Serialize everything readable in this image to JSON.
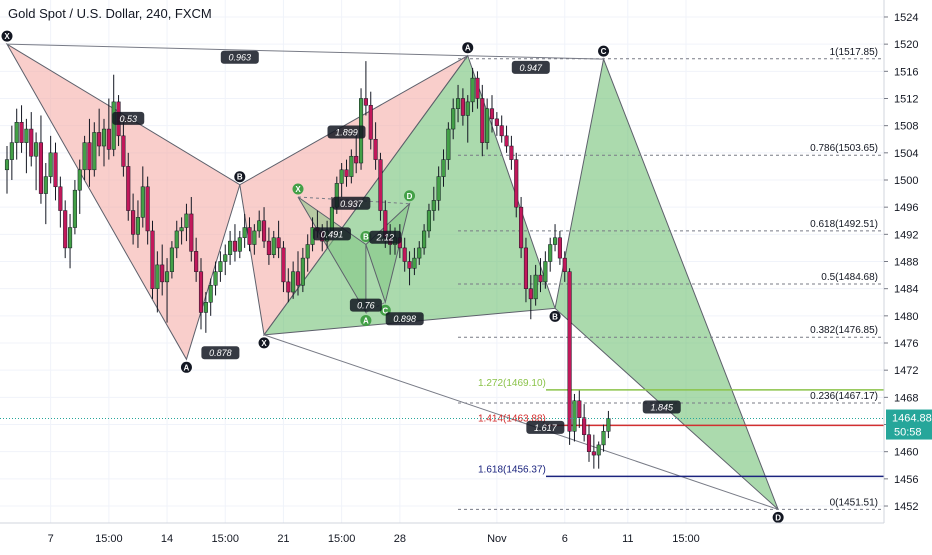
{
  "chart_data": {
    "type": "candlestick",
    "title": "Gold Spot / U.S. Dollar, 240, FXCM",
    "ylim": [
      1449.5,
      1526.5
    ],
    "y_ticks": [
      1452,
      1456,
      1460,
      1464,
      1468,
      1472,
      1476,
      1480,
      1484,
      1488,
      1492,
      1496,
      1500,
      1504,
      1508,
      1512,
      1516,
      1520,
      1524
    ],
    "x_ticks": [
      {
        "label": "7",
        "bar": 9
      },
      {
        "label": "15:00",
        "bar": 21
      },
      {
        "label": "14",
        "bar": 33
      },
      {
        "label": "15:00",
        "bar": 45
      },
      {
        "label": "21",
        "bar": 57
      },
      {
        "label": "15:00",
        "bar": 69
      },
      {
        "label": "28",
        "bar": 81
      },
      {
        "label": "Nov",
        "bar": 101
      },
      {
        "label": "6",
        "bar": 115
      },
      {
        "label": "11",
        "bar": 128
      },
      {
        "label": "15:00",
        "bar": 140
      }
    ],
    "last_price": "1464.88",
    "countdown": "50:58",
    "candles": [
      {
        "o": 1501.5,
        "h": 1505.0,
        "l": 1498.0,
        "c": 1503.0
      },
      {
        "o": 1503.0,
        "h": 1508.0,
        "l": 1500.0,
        "c": 1505.5
      },
      {
        "o": 1505.5,
        "h": 1510.5,
        "l": 1503.0,
        "c": 1508.5
      },
      {
        "o": 1508.5,
        "h": 1511.0,
        "l": 1504.0,
        "c": 1505.5
      },
      {
        "o": 1505.5,
        "h": 1509.0,
        "l": 1501.0,
        "c": 1507.5
      },
      {
        "o": 1507.5,
        "h": 1510.0,
        "l": 1502.0,
        "c": 1503.5
      },
      {
        "o": 1503.5,
        "h": 1507.0,
        "l": 1498.5,
        "c": 1505.5
      },
      {
        "o": 1505.5,
        "h": 1509.5,
        "l": 1496.5,
        "c": 1498.0
      },
      {
        "o": 1498.0,
        "h": 1502.5,
        "l": 1493.5,
        "c": 1500.5
      },
      {
        "o": 1500.5,
        "h": 1506.5,
        "l": 1499.5,
        "c": 1504.0
      },
      {
        "o": 1504.0,
        "h": 1505.5,
        "l": 1497.0,
        "c": 1499.0
      },
      {
        "o": 1499.0,
        "h": 1500.5,
        "l": 1493.0,
        "c": 1495.5
      },
      {
        "o": 1495.5,
        "h": 1497.0,
        "l": 1488.5,
        "c": 1490.0
      },
      {
        "o": 1490.0,
        "h": 1495.0,
        "l": 1487.0,
        "c": 1493.0
      },
      {
        "o": 1493.0,
        "h": 1500.0,
        "l": 1492.0,
        "c": 1498.5
      },
      {
        "o": 1498.5,
        "h": 1503.0,
        "l": 1495.0,
        "c": 1501.5
      },
      {
        "o": 1501.5,
        "h": 1506.5,
        "l": 1500.0,
        "c": 1505.5
      },
      {
        "o": 1505.5,
        "h": 1509.0,
        "l": 1499.0,
        "c": 1501.5
      },
      {
        "o": 1501.5,
        "h": 1508.5,
        "l": 1500.5,
        "c": 1507.0
      },
      {
        "o": 1507.0,
        "h": 1510.5,
        "l": 1503.5,
        "c": 1505.0
      },
      {
        "o": 1505.0,
        "h": 1509.0,
        "l": 1502.0,
        "c": 1507.5
      },
      {
        "o": 1507.5,
        "h": 1512.0,
        "l": 1503.0,
        "c": 1504.5
      },
      {
        "o": 1504.5,
        "h": 1515.5,
        "l": 1503.5,
        "c": 1511.5
      },
      {
        "o": 1511.5,
        "h": 1512.5,
        "l": 1505.0,
        "c": 1506.5
      },
      {
        "o": 1506.5,
        "h": 1508.5,
        "l": 1500.5,
        "c": 1502.0
      },
      {
        "o": 1502.0,
        "h": 1504.0,
        "l": 1494.0,
        "c": 1495.5
      },
      {
        "o": 1495.5,
        "h": 1498.0,
        "l": 1490.5,
        "c": 1492.0
      },
      {
        "o": 1492.0,
        "h": 1497.0,
        "l": 1490.0,
        "c": 1494.5
      },
      {
        "o": 1494.5,
        "h": 1502.0,
        "l": 1493.0,
        "c": 1499.0
      },
      {
        "o": 1499.0,
        "h": 1500.5,
        "l": 1490.5,
        "c": 1492.5
      },
      {
        "o": 1492.5,
        "h": 1494.0,
        "l": 1482.5,
        "c": 1484.0
      },
      {
        "o": 1484.0,
        "h": 1489.5,
        "l": 1480.5,
        "c": 1487.5
      },
      {
        "o": 1487.5,
        "h": 1490.5,
        "l": 1483.0,
        "c": 1485.0
      },
      {
        "o": 1485.0,
        "h": 1488.5,
        "l": 1479.0,
        "c": 1486.5
      },
      {
        "o": 1486.5,
        "h": 1491.0,
        "l": 1485.5,
        "c": 1490.0
      },
      {
        "o": 1490.0,
        "h": 1494.0,
        "l": 1488.5,
        "c": 1492.5
      },
      {
        "o": 1492.5,
        "h": 1494.5,
        "l": 1490.5,
        "c": 1493.0
      },
      {
        "o": 1493.0,
        "h": 1496.5,
        "l": 1491.0,
        "c": 1495.0
      },
      {
        "o": 1495.0,
        "h": 1497.5,
        "l": 1488.0,
        "c": 1489.5
      },
      {
        "o": 1489.5,
        "h": 1491.5,
        "l": 1485.0,
        "c": 1486.5
      },
      {
        "o": 1486.5,
        "h": 1488.5,
        "l": 1478.0,
        "c": 1480.5
      },
      {
        "o": 1480.5,
        "h": 1483.5,
        "l": 1477.5,
        "c": 1482.0
      },
      {
        "o": 1482.0,
        "h": 1485.5,
        "l": 1480.0,
        "c": 1484.5
      },
      {
        "o": 1484.5,
        "h": 1488.0,
        "l": 1483.0,
        "c": 1486.5
      },
      {
        "o": 1486.5,
        "h": 1489.5,
        "l": 1485.0,
        "c": 1488.0
      },
      {
        "o": 1488.0,
        "h": 1490.5,
        "l": 1486.0,
        "c": 1489.0
      },
      {
        "o": 1489.0,
        "h": 1492.5,
        "l": 1487.5,
        "c": 1491.0
      },
      {
        "o": 1491.0,
        "h": 1493.5,
        "l": 1488.0,
        "c": 1489.5
      },
      {
        "o": 1489.5,
        "h": 1492.5,
        "l": 1488.5,
        "c": 1491.5
      },
      {
        "o": 1491.5,
        "h": 1495.0,
        "l": 1490.0,
        "c": 1493.0
      },
      {
        "o": 1493.0,
        "h": 1494.5,
        "l": 1489.5,
        "c": 1490.5
      },
      {
        "o": 1490.5,
        "h": 1493.5,
        "l": 1489.0,
        "c": 1492.5
      },
      {
        "o": 1492.5,
        "h": 1495.5,
        "l": 1491.5,
        "c": 1494.0
      },
      {
        "o": 1494.0,
        "h": 1496.0,
        "l": 1490.0,
        "c": 1491.0
      },
      {
        "o": 1491.0,
        "h": 1493.0,
        "l": 1487.5,
        "c": 1489.0
      },
      {
        "o": 1489.0,
        "h": 1492.5,
        "l": 1488.5,
        "c": 1491.5
      },
      {
        "o": 1491.5,
        "h": 1494.0,
        "l": 1488.5,
        "c": 1490.0
      },
      {
        "o": 1490.0,
        "h": 1491.0,
        "l": 1483.5,
        "c": 1485.0
      },
      {
        "o": 1485.0,
        "h": 1487.0,
        "l": 1482.0,
        "c": 1483.5
      },
      {
        "o": 1483.5,
        "h": 1488.0,
        "l": 1482.5,
        "c": 1486.5
      },
      {
        "o": 1486.5,
        "h": 1489.5,
        "l": 1483.0,
        "c": 1484.5
      },
      {
        "o": 1484.5,
        "h": 1490.0,
        "l": 1483.5,
        "c": 1488.5
      },
      {
        "o": 1488.5,
        "h": 1492.0,
        "l": 1486.5,
        "c": 1490.5
      },
      {
        "o": 1490.5,
        "h": 1494.5,
        "l": 1489.5,
        "c": 1493.0
      },
      {
        "o": 1493.0,
        "h": 1495.5,
        "l": 1491.5,
        "c": 1492.5
      },
      {
        "o": 1492.5,
        "h": 1493.5,
        "l": 1489.5,
        "c": 1491.0
      },
      {
        "o": 1491.0,
        "h": 1494.0,
        "l": 1490.0,
        "c": 1492.5
      },
      {
        "o": 1492.5,
        "h": 1497.5,
        "l": 1491.5,
        "c": 1496.0
      },
      {
        "o": 1496.0,
        "h": 1500.5,
        "l": 1495.0,
        "c": 1499.5
      },
      {
        "o": 1499.5,
        "h": 1502.5,
        "l": 1497.5,
        "c": 1501.5
      },
      {
        "o": 1501.5,
        "h": 1503.0,
        "l": 1499.0,
        "c": 1500.5
      },
      {
        "o": 1500.5,
        "h": 1504.5,
        "l": 1499.5,
        "c": 1503.5
      },
      {
        "o": 1503.5,
        "h": 1507.0,
        "l": 1501.0,
        "c": 1502.5
      },
      {
        "o": 1502.5,
        "h": 1513.5,
        "l": 1501.5,
        "c": 1512.0
      },
      {
        "o": 1512.0,
        "h": 1517.5,
        "l": 1509.5,
        "c": 1511.0
      },
      {
        "o": 1511.0,
        "h": 1513.0,
        "l": 1504.5,
        "c": 1506.0
      },
      {
        "o": 1506.0,
        "h": 1508.5,
        "l": 1501.5,
        "c": 1503.0
      },
      {
        "o": 1503.0,
        "h": 1504.0,
        "l": 1494.0,
        "c": 1495.5
      },
      {
        "o": 1495.5,
        "h": 1497.0,
        "l": 1490.0,
        "c": 1491.5
      },
      {
        "o": 1491.5,
        "h": 1493.5,
        "l": 1489.0,
        "c": 1490.5
      },
      {
        "o": 1490.5,
        "h": 1493.0,
        "l": 1489.0,
        "c": 1491.5
      },
      {
        "o": 1491.5,
        "h": 1493.5,
        "l": 1488.5,
        "c": 1490.0
      },
      {
        "o": 1490.0,
        "h": 1491.5,
        "l": 1486.5,
        "c": 1488.0
      },
      {
        "o": 1488.0,
        "h": 1489.5,
        "l": 1484.5,
        "c": 1487.0
      },
      {
        "o": 1487.0,
        "h": 1490.0,
        "l": 1486.0,
        "c": 1488.5
      },
      {
        "o": 1488.5,
        "h": 1491.0,
        "l": 1487.5,
        "c": 1490.0
      },
      {
        "o": 1490.0,
        "h": 1493.5,
        "l": 1489.0,
        "c": 1492.5
      },
      {
        "o": 1492.5,
        "h": 1496.5,
        "l": 1491.5,
        "c": 1495.5
      },
      {
        "o": 1495.5,
        "h": 1499.0,
        "l": 1494.0,
        "c": 1497.0
      },
      {
        "o": 1497.0,
        "h": 1502.0,
        "l": 1495.5,
        "c": 1500.5
      },
      {
        "o": 1500.5,
        "h": 1504.5,
        "l": 1499.0,
        "c": 1503.0
      },
      {
        "o": 1503.0,
        "h": 1508.5,
        "l": 1501.5,
        "c": 1507.5
      },
      {
        "o": 1507.5,
        "h": 1512.0,
        "l": 1506.0,
        "c": 1510.5
      },
      {
        "o": 1510.5,
        "h": 1514.0,
        "l": 1508.5,
        "c": 1512.0
      },
      {
        "o": 1512.0,
        "h": 1513.5,
        "l": 1508.0,
        "c": 1509.5
      },
      {
        "o": 1509.5,
        "h": 1512.5,
        "l": 1505.5,
        "c": 1511.5
      },
      {
        "o": 1511.5,
        "h": 1516.5,
        "l": 1510.0,
        "c": 1515.0
      },
      {
        "o": 1515.0,
        "h": 1516.0,
        "l": 1510.5,
        "c": 1512.0
      },
      {
        "o": 1512.0,
        "h": 1514.0,
        "l": 1503.5,
        "c": 1505.5
      },
      {
        "o": 1505.5,
        "h": 1512.0,
        "l": 1504.5,
        "c": 1510.5
      },
      {
        "o": 1510.5,
        "h": 1512.5,
        "l": 1507.0,
        "c": 1509.0
      },
      {
        "o": 1509.0,
        "h": 1510.0,
        "l": 1506.5,
        "c": 1508.0
      },
      {
        "o": 1508.0,
        "h": 1509.5,
        "l": 1505.5,
        "c": 1506.5
      },
      {
        "o": 1506.5,
        "h": 1508.0,
        "l": 1504.0,
        "c": 1505.0
      },
      {
        "o": 1505.0,
        "h": 1506.5,
        "l": 1501.5,
        "c": 1503.0
      },
      {
        "o": 1503.0,
        "h": 1504.0,
        "l": 1494.5,
        "c": 1496.0
      },
      {
        "o": 1496.0,
        "h": 1497.5,
        "l": 1488.5,
        "c": 1490.0
      },
      {
        "o": 1490.0,
        "h": 1491.5,
        "l": 1482.0,
        "c": 1484.0
      },
      {
        "o": 1484.0,
        "h": 1486.0,
        "l": 1479.5,
        "c": 1482.5
      },
      {
        "o": 1482.5,
        "h": 1487.5,
        "l": 1481.5,
        "c": 1486.0
      },
      {
        "o": 1486.0,
        "h": 1488.5,
        "l": 1483.5,
        "c": 1485.0
      },
      {
        "o": 1485.0,
        "h": 1489.5,
        "l": 1484.0,
        "c": 1488.0
      },
      {
        "o": 1488.0,
        "h": 1491.5,
        "l": 1486.5,
        "c": 1490.5
      },
      {
        "o": 1490.5,
        "h": 1493.5,
        "l": 1489.5,
        "c": 1491.5
      },
      {
        "o": 1491.5,
        "h": 1492.5,
        "l": 1487.5,
        "c": 1488.5
      },
      {
        "o": 1488.5,
        "h": 1489.5,
        "l": 1485.0,
        "c": 1486.5
      },
      {
        "o": 1486.5,
        "h": 1487.0,
        "l": 1461.0,
        "c": 1463.0
      },
      {
        "o": 1463.0,
        "h": 1468.5,
        "l": 1461.5,
        "c": 1467.5
      },
      {
        "o": 1467.5,
        "h": 1469.0,
        "l": 1463.5,
        "c": 1465.0
      },
      {
        "o": 1465.0,
        "h": 1467.0,
        "l": 1461.5,
        "c": 1462.5
      },
      {
        "o": 1462.5,
        "h": 1464.0,
        "l": 1458.5,
        "c": 1460.0
      },
      {
        "o": 1460.0,
        "h": 1462.5,
        "l": 1457.5,
        "c": 1459.5
      },
      {
        "o": 1459.5,
        "h": 1461.5,
        "l": 1457.5,
        "c": 1461.0
      },
      {
        "o": 1461.0,
        "h": 1464.0,
        "l": 1460.0,
        "c": 1463.0
      },
      {
        "o": 1463.0,
        "h": 1466.0,
        "l": 1462.0,
        "c": 1464.88
      }
    ],
    "fib_levels": [
      {
        "label": "1(1517.85)",
        "value": 1517.85,
        "color": "#787b86"
      },
      {
        "label": "0.786(1503.65)",
        "value": 1503.65,
        "color": "#787b86"
      },
      {
        "label": "0.618(1492.51)",
        "value": 1492.51,
        "color": "#787b86"
      },
      {
        "label": "0.5(1484.68)",
        "value": 1484.68,
        "color": "#787b86"
      },
      {
        "label": "0.382(1476.85)",
        "value": 1476.85,
        "color": "#787b86"
      },
      {
        "label": "0.236(1467.17)",
        "value": 1467.17,
        "color": "#787b86"
      },
      {
        "label": "0(1451.51)",
        "value": 1451.51,
        "color": "#787b86"
      },
      {
        "label": "1.272(1469.10)",
        "value": 1469.1,
        "color": "#8bc34a"
      },
      {
        "label": "1.414(1463.88)",
        "value": 1463.88,
        "color": "#d32f2f"
      },
      {
        "label": "1.618(1456.37)",
        "value": 1456.37,
        "color": "#1a237e"
      }
    ],
    "pattern_points": [
      {
        "label": "X",
        "bar": 0,
        "price": 1520.0,
        "side": "top"
      },
      {
        "label": "A",
        "bar": 37,
        "price": 1473.6,
        "side": "bottom"
      },
      {
        "label": "B",
        "bar": 48,
        "price": 1499.3,
        "side": "top"
      },
      {
        "label": "X",
        "bar": 53,
        "price": 1477.2,
        "side": "bottom"
      },
      {
        "label": "A",
        "bar": 95,
        "price": 1518.3,
        "side": "top"
      },
      {
        "label": "C",
        "bar": 123,
        "price": 1517.8,
        "side": "top"
      },
      {
        "label": "B",
        "bar": 113,
        "price": 1481.1,
        "side": "bottom"
      },
      {
        "label": "D",
        "bar": 159,
        "price": 1451.5,
        "side": "bottom"
      },
      {
        "label": "X",
        "bar": 60,
        "price": 1497.5,
        "side": "top"
      },
      {
        "label": "A",
        "bar": 74,
        "price": 1480.5,
        "side": "bottom"
      },
      {
        "label": "B",
        "bar": 74,
        "price": 1490.5,
        "side": "top"
      },
      {
        "label": "C",
        "bar": 78,
        "price": 1482.0,
        "side": "bottom"
      },
      {
        "label": "D",
        "bar": 83,
        "price": 1496.5,
        "side": "top"
      }
    ],
    "ratio_labels": [
      {
        "text": "0.963",
        "bar": 48,
        "price": 1518.0
      },
      {
        "text": "0.947",
        "bar": 108,
        "price": 1516.5
      },
      {
        "text": "1.899",
        "bar": 70,
        "price": 1507.0
      },
      {
        "text": "0.878",
        "bar": 44,
        "price": 1474.5
      },
      {
        "text": "0.898",
        "bar": 82,
        "price": 1479.5
      },
      {
        "text": "1.845",
        "bar": 135,
        "price": 1466.5
      },
      {
        "text": "0.53",
        "bar": 25,
        "price": 1509.0
      },
      {
        "text": "0.937",
        "bar": 71,
        "price": 1496.5
      },
      {
        "text": "0.491",
        "bar": 67,
        "price": 1492.0
      },
      {
        "text": "2.12",
        "bar": 78,
        "price": 1491.5
      },
      {
        "text": "0.76",
        "bar": 74,
        "price": 1481.5
      },
      {
        "text": "1.617",
        "bar": 111,
        "price": 1463.5
      }
    ]
  }
}
